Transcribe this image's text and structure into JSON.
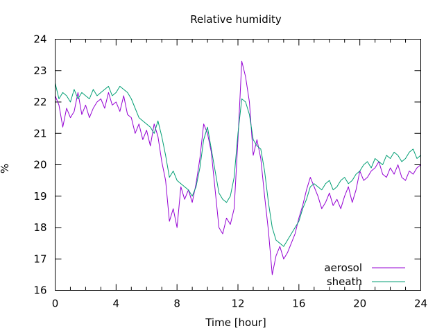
{
  "chart_data": {
    "type": "line",
    "title": "Relative humidity",
    "xlabel": "Time [hour]",
    "ylabel": "%",
    "xlim": [
      0,
      24
    ],
    "ylim": [
      16,
      24
    ],
    "x_ticks": [
      0,
      4,
      8,
      12,
      16,
      20,
      24
    ],
    "y_ticks": [
      16,
      17,
      18,
      19,
      20,
      21,
      22,
      23,
      24
    ],
    "x_minor_step": 1,
    "grid": false,
    "legend_position": "bottom-right",
    "series": [
      {
        "name": "aerosol",
        "color": "#9400d3",
        "x": [
          0,
          0.25,
          0.5,
          0.75,
          1,
          1.25,
          1.5,
          1.75,
          2,
          2.25,
          2.5,
          2.75,
          3,
          3.25,
          3.5,
          3.75,
          4,
          4.25,
          4.5,
          4.75,
          5,
          5.25,
          5.5,
          5.75,
          6,
          6.25,
          6.5,
          6.75,
          7,
          7.25,
          7.5,
          7.75,
          8,
          8.25,
          8.5,
          8.75,
          9,
          9.25,
          9.5,
          9.75,
          10,
          10.25,
          10.5,
          10.75,
          11,
          11.25,
          11.5,
          11.75,
          12,
          12.25,
          12.5,
          12.75,
          13,
          13.25,
          13.5,
          13.75,
          14,
          14.25,
          14.5,
          14.75,
          15,
          15.25,
          15.5,
          15.75,
          16,
          16.25,
          16.5,
          16.75,
          17,
          17.25,
          17.5,
          17.75,
          18,
          18.25,
          18.5,
          18.75,
          19,
          19.25,
          19.5,
          19.75,
          20,
          20.25,
          20.5,
          20.75,
          21,
          21.25,
          21.5,
          21.75,
          22,
          22.25,
          22.5,
          22.75,
          23,
          23.25,
          23.5,
          23.75,
          24
        ],
        "values": [
          22.2,
          21.9,
          21.2,
          21.8,
          21.5,
          21.7,
          22.3,
          21.6,
          21.9,
          21.5,
          21.8,
          22.0,
          22.1,
          21.8,
          22.3,
          21.9,
          22.0,
          21.7,
          22.2,
          21.6,
          21.5,
          21.0,
          21.3,
          20.8,
          21.1,
          20.6,
          21.3,
          20.9,
          20.1,
          19.5,
          18.2,
          18.6,
          18.0,
          19.3,
          18.9,
          19.2,
          18.8,
          19.4,
          20.2,
          21.3,
          21.0,
          20.4,
          19.2,
          18.0,
          17.8,
          18.3,
          18.1,
          18.6,
          20.8,
          23.3,
          22.8,
          22.0,
          20.3,
          20.8,
          20.2,
          19.0,
          17.9,
          16.5,
          17.1,
          17.4,
          17.0,
          17.2,
          17.5,
          17.8,
          18.3,
          18.7,
          19.2,
          19.6,
          19.3,
          19.0,
          18.6,
          18.8,
          19.1,
          18.7,
          18.9,
          18.6,
          19.0,
          19.3,
          18.8,
          19.2,
          19.8,
          19.5,
          19.6,
          19.8,
          19.9,
          20.1,
          19.7,
          19.6,
          19.9,
          19.7,
          20.0,
          19.6,
          19.5,
          19.8,
          19.7,
          19.9,
          20.0
        ]
      },
      {
        "name": "sheath",
        "color": "#009e73",
        "x": [
          0,
          0.25,
          0.5,
          0.75,
          1,
          1.25,
          1.5,
          1.75,
          2,
          2.25,
          2.5,
          2.75,
          3,
          3.25,
          3.5,
          3.75,
          4,
          4.25,
          4.5,
          4.75,
          5,
          5.25,
          5.5,
          5.75,
          6,
          6.25,
          6.5,
          6.75,
          7,
          7.25,
          7.5,
          7.75,
          8,
          8.25,
          8.5,
          8.75,
          9,
          9.25,
          9.5,
          9.75,
          10,
          10.25,
          10.5,
          10.75,
          11,
          11.25,
          11.5,
          11.75,
          12,
          12.25,
          12.5,
          12.75,
          13,
          13.25,
          13.5,
          13.75,
          14,
          14.25,
          14.5,
          14.75,
          15,
          15.25,
          15.5,
          15.75,
          16,
          16.25,
          16.5,
          16.75,
          17,
          17.25,
          17.5,
          17.75,
          18,
          18.25,
          18.5,
          18.75,
          19,
          19.25,
          19.5,
          19.75,
          20,
          20.25,
          20.5,
          20.75,
          21,
          21.25,
          21.5,
          21.75,
          22,
          22.25,
          22.5,
          22.75,
          23,
          23.25,
          23.5,
          23.75,
          24
        ],
        "values": [
          22.6,
          22.1,
          22.3,
          22.2,
          22.0,
          22.4,
          22.1,
          22.3,
          22.2,
          22.1,
          22.4,
          22.2,
          22.3,
          22.4,
          22.5,
          22.2,
          22.3,
          22.5,
          22.4,
          22.3,
          22.1,
          21.8,
          21.5,
          21.4,
          21.3,
          21.2,
          21.0,
          21.4,
          20.9,
          20.3,
          19.6,
          19.8,
          19.5,
          19.4,
          19.3,
          19.2,
          19.0,
          19.3,
          19.9,
          20.8,
          21.2,
          20.5,
          19.8,
          19.1,
          18.9,
          18.8,
          19.0,
          19.6,
          21.0,
          22.1,
          22.0,
          21.6,
          20.8,
          20.6,
          20.5,
          19.8,
          18.8,
          18.0,
          17.6,
          17.5,
          17.4,
          17.6,
          17.8,
          18.0,
          18.2,
          18.6,
          18.9,
          19.3,
          19.4,
          19.3,
          19.2,
          19.4,
          19.5,
          19.2,
          19.3,
          19.5,
          19.6,
          19.4,
          19.5,
          19.7,
          19.8,
          20.0,
          20.1,
          19.9,
          20.2,
          20.1,
          20.0,
          20.3,
          20.2,
          20.4,
          20.3,
          20.1,
          20.2,
          20.4,
          20.5,
          20.2,
          20.3
        ]
      }
    ]
  }
}
